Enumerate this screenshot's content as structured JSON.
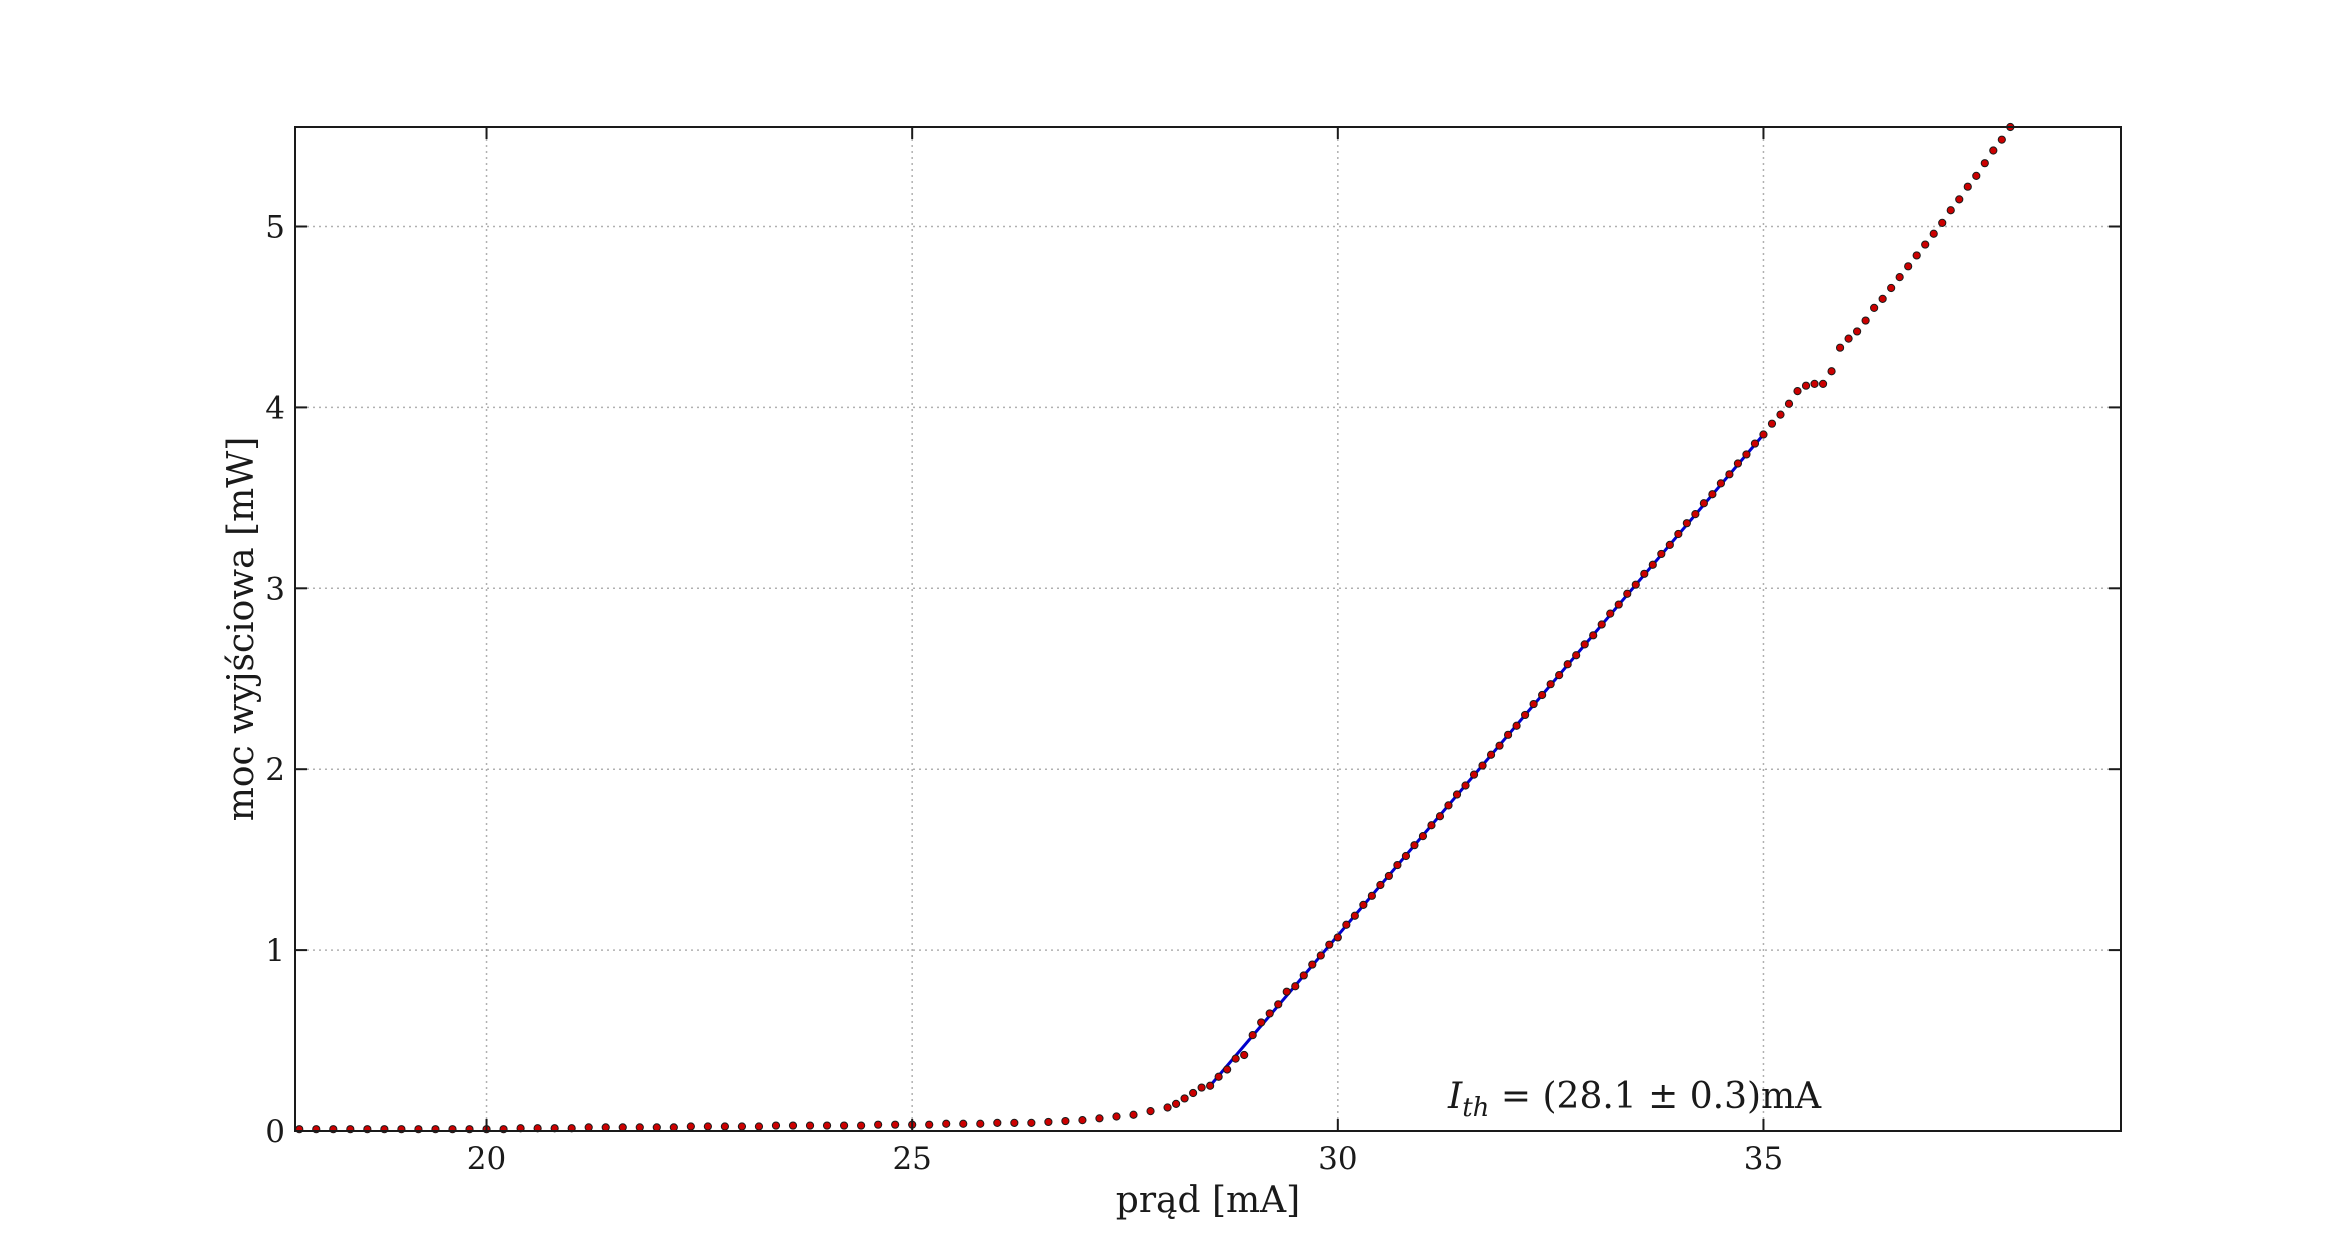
{
  "chart_data": {
    "type": "scatter",
    "title": "",
    "xlabel": "prąd [mA]",
    "ylabel": "moc wyjściowa [mW]",
    "xlim": [
      17.75,
      39.2
    ],
    "ylim": [
      0,
      5.55
    ],
    "xticks": [
      20,
      25,
      30,
      35
    ],
    "yticks": [
      0,
      1,
      2,
      3,
      4,
      5
    ],
    "grid": true,
    "annotation": {
      "symbol": "I",
      "subscript": "th",
      "text": " = (28.1 ± 0.3)mA"
    },
    "colors": {
      "points": "#cc0000",
      "point_edge": "#1a1a1a",
      "fit_line": "#0000cc",
      "grid": "#b0b0b0"
    },
    "series": [
      {
        "kind": "scatter",
        "x": [
          17.8,
          18.0,
          18.2,
          18.4,
          18.6,
          18.8,
          19.0,
          19.2,
          19.4,
          19.6,
          19.8,
          20.0,
          20.2,
          20.4,
          20.6,
          20.8,
          21.0,
          21.2,
          21.4,
          21.6,
          21.8,
          22.0,
          22.2,
          22.4,
          22.6,
          22.8,
          23.0,
          23.2,
          23.4,
          23.6,
          23.8,
          24.0,
          24.2,
          24.4,
          24.6,
          24.8,
          25.0,
          25.2,
          25.4,
          25.6,
          25.8,
          26.0,
          26.2,
          26.4,
          26.6,
          26.8,
          27.0,
          27.2,
          27.4,
          27.6,
          27.8,
          28.0,
          28.1,
          28.2,
          28.3,
          28.4,
          28.5,
          28.6,
          28.7,
          28.8,
          28.9,
          29.0,
          29.1,
          29.2,
          29.3,
          29.4,
          29.5,
          29.6,
          29.7,
          29.8,
          29.9,
          30.0,
          30.1,
          30.2,
          30.3,
          30.4,
          30.5,
          30.6,
          30.7,
          30.8,
          30.9,
          31.0,
          31.1,
          31.2,
          31.3,
          31.4,
          31.5,
          31.6,
          31.7,
          31.8,
          31.9,
          32.0,
          32.1,
          32.2,
          32.3,
          32.4,
          32.5,
          32.6,
          32.7,
          32.8,
          32.9,
          33.0,
          33.1,
          33.2,
          33.3,
          33.4,
          33.5,
          33.6,
          33.7,
          33.8,
          33.9,
          34.0,
          34.1,
          34.2,
          34.3,
          34.4,
          34.5,
          34.6,
          34.7,
          34.8,
          34.9,
          35.0,
          35.1,
          35.2,
          35.3,
          35.4,
          35.5,
          35.6,
          35.7,
          35.8,
          35.9,
          36.0,
          36.1,
          36.2,
          36.3,
          36.4,
          36.5,
          36.6,
          36.7,
          36.8,
          36.9,
          37.0,
          37.1,
          37.2,
          37.3,
          37.4,
          37.5,
          37.6,
          37.7,
          37.8,
          37.9
        ],
        "y": [
          0.01,
          0.01,
          0.01,
          0.01,
          0.01,
          0.01,
          0.01,
          0.01,
          0.01,
          0.01,
          0.01,
          0.01,
          0.01,
          0.015,
          0.015,
          0.015,
          0.015,
          0.02,
          0.02,
          0.02,
          0.02,
          0.02,
          0.02,
          0.025,
          0.025,
          0.025,
          0.025,
          0.025,
          0.03,
          0.03,
          0.03,
          0.03,
          0.03,
          0.03,
          0.035,
          0.035,
          0.035,
          0.035,
          0.04,
          0.04,
          0.04,
          0.045,
          0.045,
          0.045,
          0.05,
          0.055,
          0.06,
          0.07,
          0.08,
          0.09,
          0.11,
          0.13,
          0.15,
          0.18,
          0.21,
          0.24,
          0.25,
          0.3,
          0.34,
          0.4,
          0.42,
          0.53,
          0.6,
          0.65,
          0.7,
          0.77,
          0.8,
          0.86,
          0.92,
          0.97,
          1.03,
          1.07,
          1.14,
          1.19,
          1.25,
          1.3,
          1.36,
          1.41,
          1.47,
          1.52,
          1.58,
          1.63,
          1.69,
          1.74,
          1.8,
          1.86,
          1.91,
          1.97,
          2.02,
          2.08,
          2.13,
          2.19,
          2.24,
          2.3,
          2.36,
          2.41,
          2.47,
          2.52,
          2.58,
          2.63,
          2.69,
          2.74,
          2.8,
          2.86,
          2.91,
          2.97,
          3.02,
          3.08,
          3.13,
          3.19,
          3.24,
          3.3,
          3.36,
          3.41,
          3.47,
          3.52,
          3.58,
          3.63,
          3.69,
          3.74,
          3.8,
          3.85,
          3.91,
          3.96,
          4.02,
          4.09,
          4.12,
          4.13,
          4.13,
          4.2,
          4.33,
          4.38,
          4.42,
          4.48,
          4.55,
          4.6,
          4.66,
          4.72,
          4.78,
          4.84,
          4.9,
          4.96,
          5.02,
          5.09,
          5.15,
          5.22,
          5.28,
          5.35,
          5.42,
          5.48,
          5.55
        ]
      },
      {
        "kind": "line",
        "name": "",
        "x": [
          28.5,
          35.0
        ],
        "y": [
          0.25,
          3.85
        ]
      }
    ]
  }
}
